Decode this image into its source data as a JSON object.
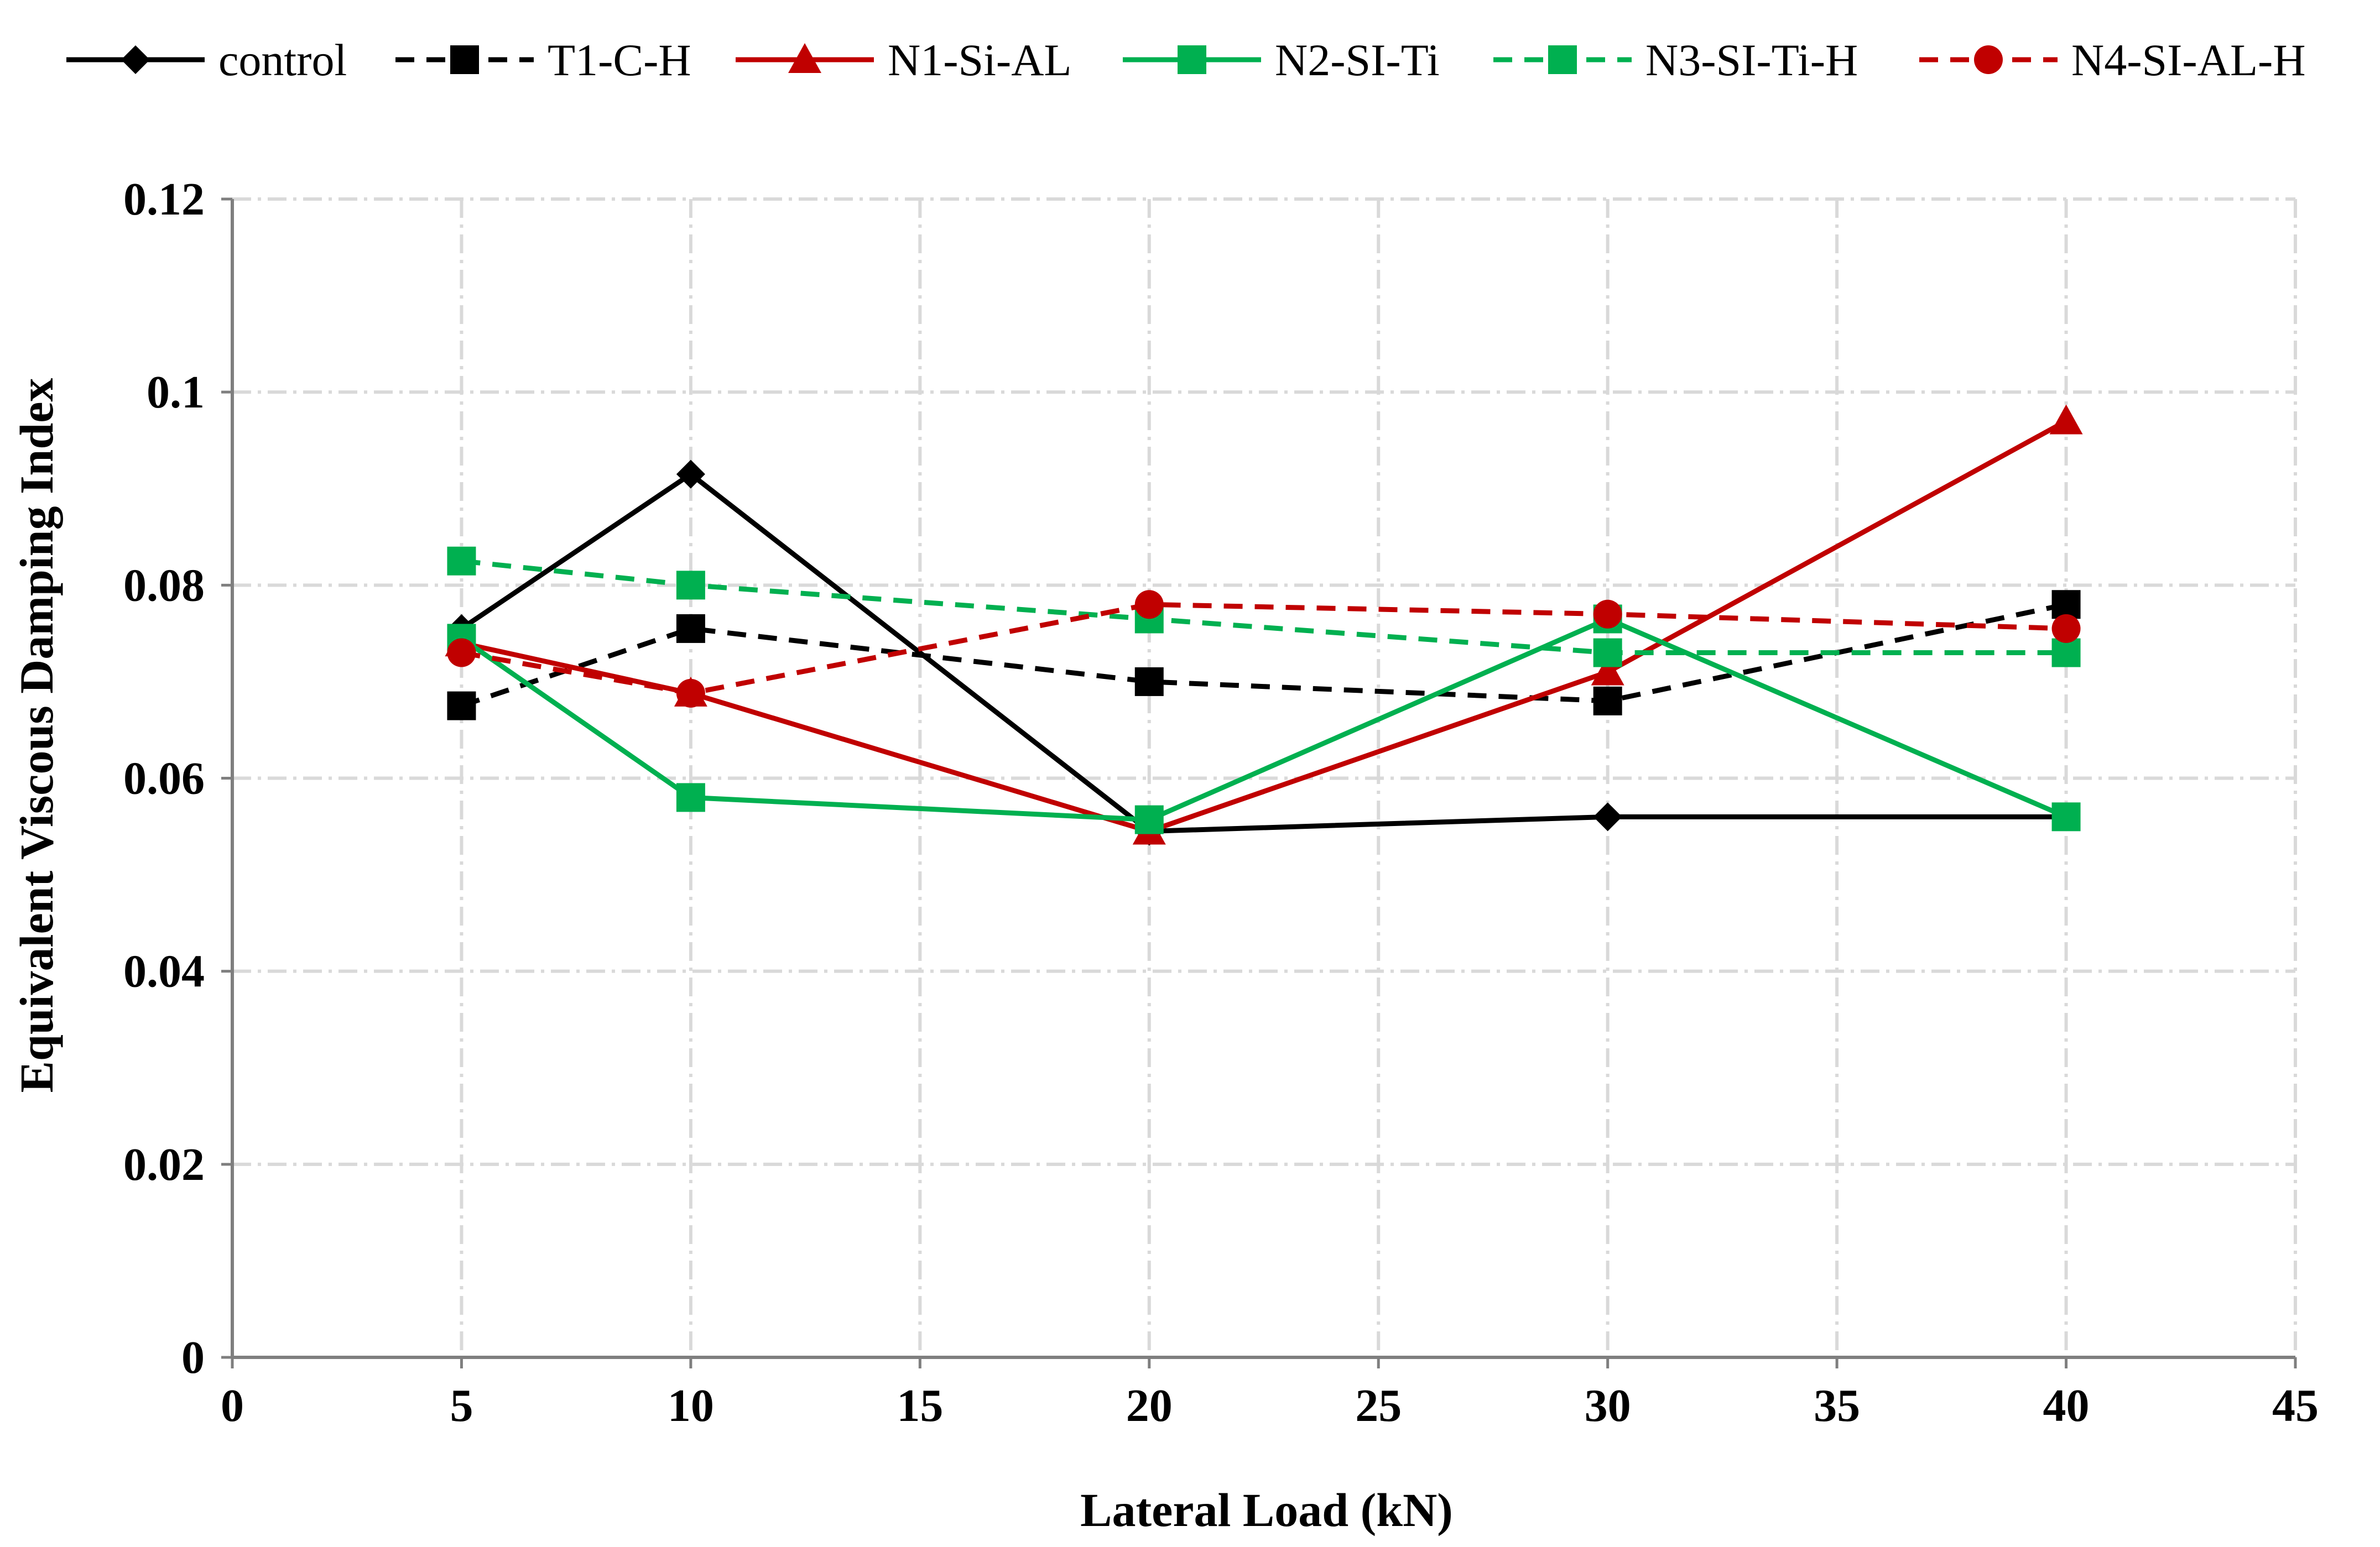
{
  "chart_data": {
    "type": "line",
    "title": "",
    "xlabel": "Lateral Load (kN)",
    "ylabel": "Equivalent Viscous Damping Index",
    "xlim": [
      0,
      45
    ],
    "ylim": [
      0,
      0.12
    ],
    "x_ticks": [
      "0",
      "5",
      "10",
      "15",
      "20",
      "25",
      "30",
      "35",
      "40",
      "45"
    ],
    "y_ticks": [
      "0",
      "0.02",
      "0.04",
      "0.06",
      "0.08",
      "0.1",
      "0.12"
    ],
    "grid": true,
    "grid_style": "dash-dot",
    "legend_position": "top",
    "series": [
      {
        "name": "control",
        "color": "#000000",
        "dash": "solid",
        "marker": "diamond",
        "x": [
          5,
          10,
          20,
          30,
          40
        ],
        "y": [
          0.0755,
          0.0915,
          0.0545,
          0.056,
          0.056
        ]
      },
      {
        "name": "T1-C-H",
        "color": "#000000",
        "dash": "dashed",
        "marker": "square",
        "x": [
          5,
          10,
          20,
          30,
          40
        ],
        "y": [
          0.0675,
          0.0755,
          0.07,
          0.068,
          0.078
        ]
      },
      {
        "name": "N1-Si-AL",
        "color": "#c00000",
        "dash": "solid",
        "marker": "triangle",
        "x": [
          5,
          10,
          20,
          30,
          40
        ],
        "y": [
          0.074,
          0.0688,
          0.0545,
          0.071,
          0.097
        ]
      },
      {
        "name": "N2-SI-Ti",
        "color": "#00b050",
        "dash": "solid",
        "marker": "square",
        "x": [
          5,
          10,
          20,
          30,
          40
        ],
        "y": [
          0.0745,
          0.058,
          0.0557,
          0.0765,
          0.056
        ]
      },
      {
        "name": "N3-SI-Ti-H",
        "color": "#00b050",
        "dash": "dashed",
        "marker": "square",
        "x": [
          5,
          10,
          20,
          30,
          40
        ],
        "y": [
          0.0825,
          0.08,
          0.0765,
          0.073,
          0.073
        ]
      },
      {
        "name": "N4-SI-AL-H",
        "color": "#c00000",
        "dash": "dashed",
        "marker": "circle",
        "x": [
          5,
          10,
          20,
          30,
          40
        ],
        "y": [
          0.073,
          0.0688,
          0.078,
          0.077,
          0.0755
        ]
      }
    ]
  }
}
